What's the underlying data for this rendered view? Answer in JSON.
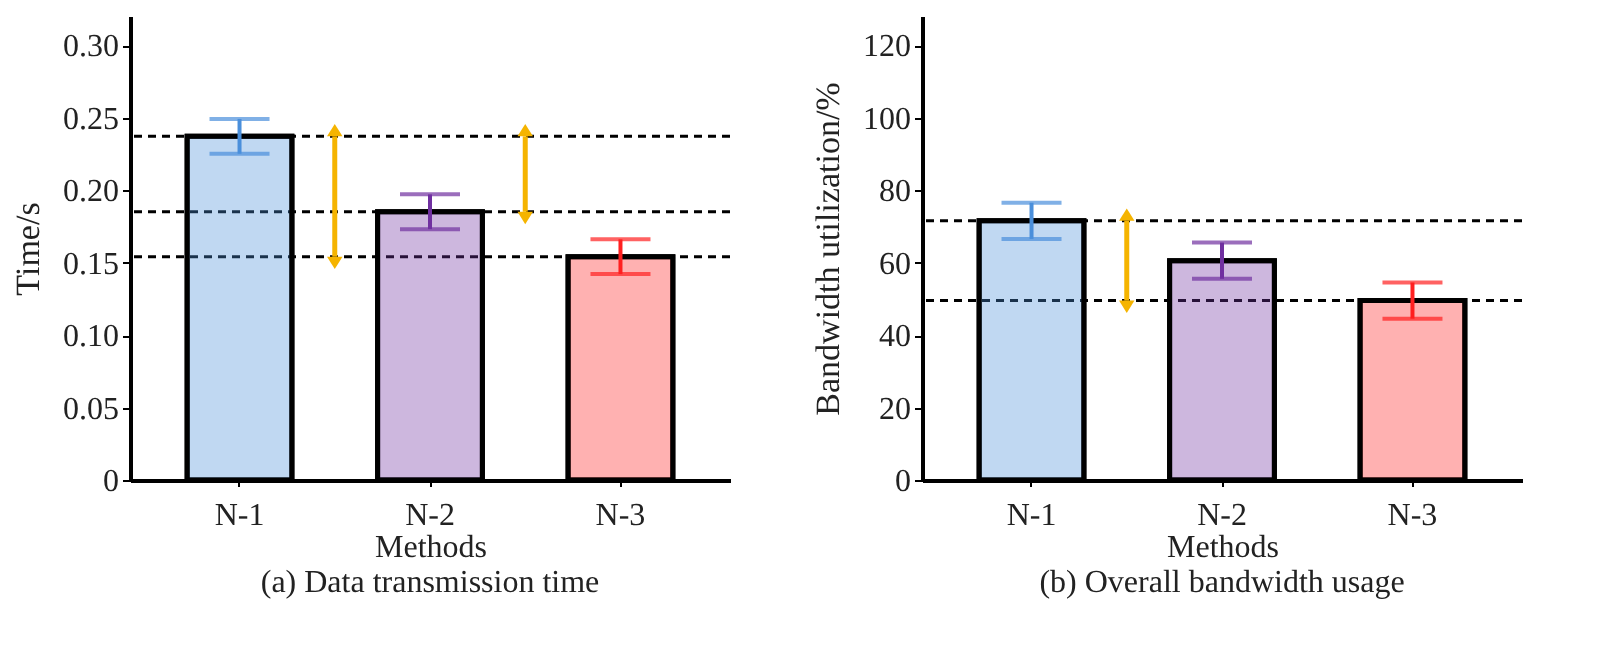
{
  "chart_data": [
    {
      "type": "bar",
      "title": "(a) Data transmission time",
      "xlabel": "Methods",
      "ylabel": "Time/s",
      "categories": [
        "N-1",
        "N-2",
        "N-3"
      ],
      "values": [
        0.237,
        0.185,
        0.154
      ],
      "colors": [
        "#4a8fdb",
        "#7030a0",
        "#ff2020"
      ],
      "errors": [
        0.012,
        0.012,
        0.012
      ],
      "ylim": [
        0,
        0.32
      ],
      "yticks": [
        0,
        0.05,
        {
          "value": 0.1,
          "label": "0.10"
        },
        0.15,
        {
          "value": 0.2,
          "label": "0.20"
        },
        0.25,
        {
          "value": 0.3,
          "label": "0.30"
        }
      ],
      "ref_lines": [
        {
          "axis": "y",
          "value": 0.237,
          "color": "#000000",
          "line_style": "dashed"
        },
        {
          "axis": "y",
          "value": 0.154,
          "color": "#000000",
          "line_style": "dashed"
        },
        {
          "axis": "y",
          "value": 0.185,
          "color": "#000000",
          "line_style": "dashed"
        }
      ]
    },
    {
      "type": "bar",
      "title": "(b) Overall bandwidth usage",
      "xlabel": "Methods",
      "ylabel": "Bandwidth utilization/%",
      "categories": [
        "N-1",
        "N-2",
        "N-3"
      ],
      "values": [
        71.5,
        60.5,
        49.5
      ],
      "colors": [
        "#4a8fdb",
        "#7030a0",
        "#ff2020"
      ],
      "errors": [
        5,
        5,
        5
      ],
      "ylim": [
        0,
        128
      ],
      "yticks": [
        0,
        20,
        40,
        60,
        80,
        100,
        120
      ],
      "ref_lines": [
        {
          "axis": "y",
          "value": 71.5,
          "color": "#000000",
          "line_style": "dashed"
        },
        {
          "axis": "y",
          "value": 49.5,
          "color": "#000000",
          "line_style": "dashed"
        }
      ]
    }
  ]
}
